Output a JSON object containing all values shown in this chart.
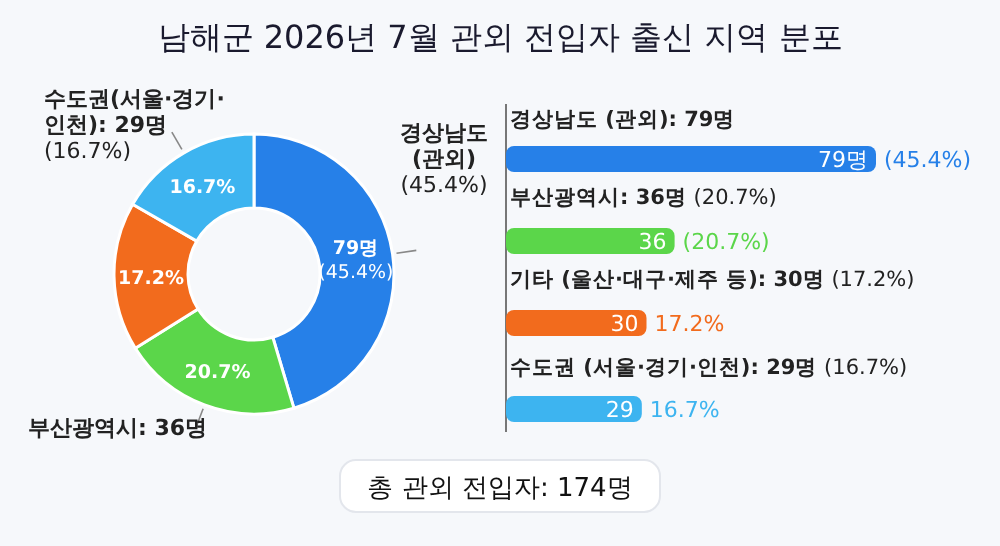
{
  "chart_data": [
    {
      "type": "donut",
      "title": "남해군 2026년 7월 관외 전입자 출신 지역 분포",
      "categories": [
        "**경상남도\n(관외)**\n(45.4%)",
        "**부산광역시: 36명**",
        null,
        "**수도권(서울·경기·\n인천): 29명**\n(16.7%)"
      ],
      "values": [
        45.4,
        20.7,
        17.2,
        16.7
      ],
      "colors": [
        "#2680e8",
        "#5bd64a",
        "#f26b1d",
        "#3db4f0"
      ],
      "value_labels": [
        "79명\n(45.4%)",
        "20.7%",
        "17.2%",
        "16.7%"
      ],
      "annotations": [
        "총 관외 전입자: 174명"
      ]
    },
    {
      "type": "bar",
      "orientation": "horizontal",
      "categories": [
        "**경상남도 (관외): 79명**",
        "**부산광역시: 36명** (20.7%)",
        "**기타 (울산·대구·제주 등): 30명** (17.2%)",
        "**수도권 (서울·경기·인천): 29명** (16.7%)"
      ],
      "values": [
        79,
        36,
        30,
        29
      ],
      "colors": [
        "#2680e8",
        "#5bd64a",
        "#f26b1d",
        "#3db4f0"
      ],
      "xlim": [
        0,
        79
      ],
      "value_labels": [
        "79명",
        "36",
        "30",
        "29"
      ],
      "annotations": [
        {
          "text": "(45.4%)",
          "x": 79,
          "y": "**경상남도 (관외): 79명**"
        },
        {
          "text": "(20.7%)",
          "x": 36,
          "y": "**부산광역시: 36명** (20.7%)"
        },
        {
          "text": "17.2%",
          "x": 30,
          "y": "**기타 (울산·대구·제주 등): 30명** (17.2%)"
        },
        {
          "text": "16.7%",
          "x": 29,
          "y": "**수도권 (서울·경기·인천): 29명** (16.7%)"
        }
      ]
    }
  ]
}
